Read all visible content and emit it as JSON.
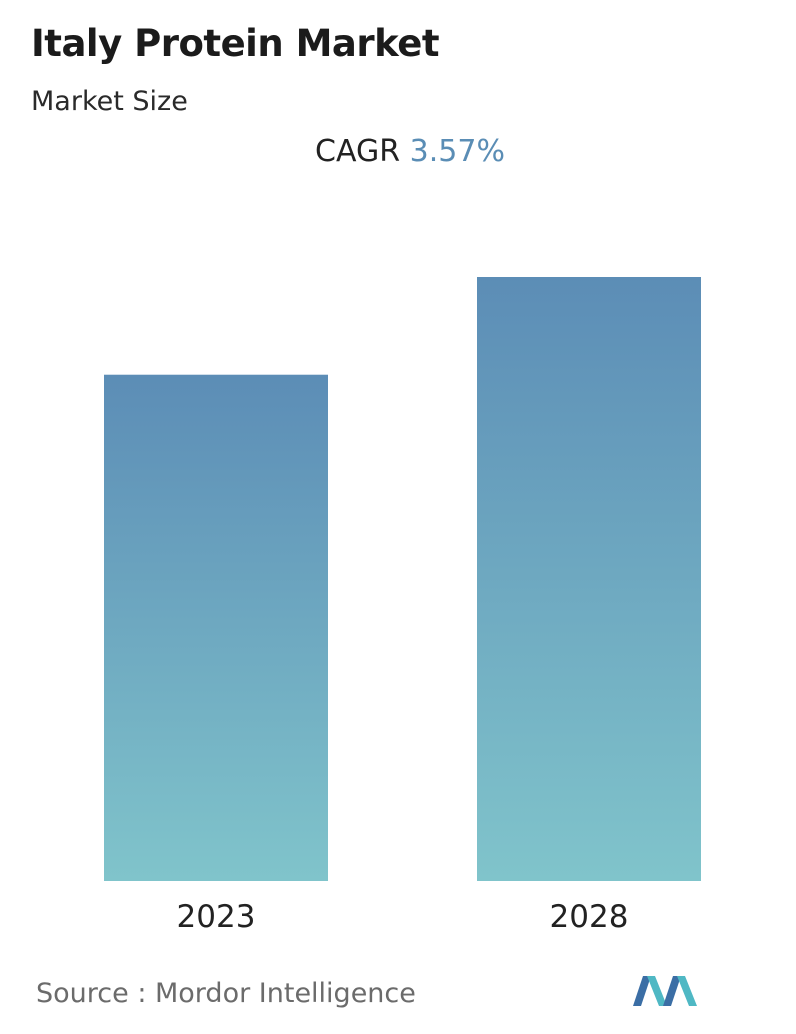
{
  "header": {
    "title": "Italy Protein Market",
    "subtitle": "Market Size"
  },
  "cagr": {
    "label": "CAGR",
    "value": "3.57%"
  },
  "footer": {
    "source": "Source :  Mordor Intelligence"
  },
  "colors": {
    "bar_top": "#5c8db6",
    "bar_bottom": "#80c4cb",
    "accent": "#5a8db5",
    "logo_dark": "#3b6ea5",
    "logo_light": "#4fb8c4"
  },
  "chart_data": {
    "type": "bar",
    "categories": [
      "2023",
      "2028"
    ],
    "values": [
      1.0,
      1.193
    ],
    "value_note": "relative heights; no values printed",
    "ylim": [
      0,
      1.2
    ],
    "grid": false,
    "legend": "none"
  }
}
